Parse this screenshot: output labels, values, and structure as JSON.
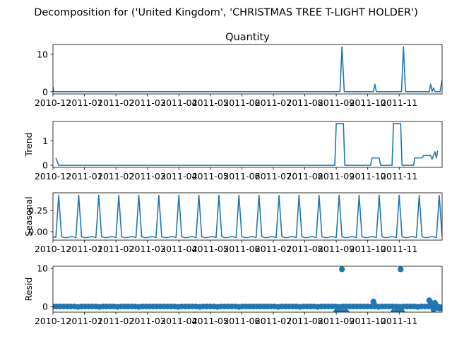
{
  "figure": {
    "title": "Decomposition for ('United Kingdom', 'CHRISTMAS TREE T-LIGHT HOLDER')"
  },
  "colors": {
    "series": "#1f77b4",
    "axes": "#000000",
    "background": "#ffffff"
  },
  "chart_data": [
    {
      "type": "line",
      "title": "Quantity",
      "ylabel": "",
      "ylim": [
        -0.6,
        12.6
      ],
      "yticks": [
        0,
        10
      ],
      "x_ticks": [
        "2010-12",
        "2011-01",
        "2011-02",
        "2011-03",
        "2011-04",
        "2011-05",
        "2011-06",
        "2011-07",
        "2011-08",
        "2011-09",
        "2011-10",
        "2011-11"
      ],
      "grid": false,
      "series": [
        {
          "points": [
            [
              0,
              1.3
            ],
            [
              0.3,
              0
            ],
            [
              100.3,
              0
            ],
            [
              101,
              12
            ],
            [
              101.8,
              0
            ],
            [
              112,
              0
            ],
            [
              112.5,
              2
            ],
            [
              113,
              0
            ],
            [
              121.8,
              0
            ],
            [
              122.5,
              12
            ],
            [
              123.2,
              0
            ],
            [
              131.5,
              0
            ],
            [
              132,
              2
            ],
            [
              132.5,
              0
            ],
            [
              133,
              1
            ],
            [
              133.5,
              0
            ],
            [
              134.5,
              0
            ],
            [
              135.3,
              0
            ],
            [
              136,
              3.2
            ]
          ]
        }
      ]
    },
    {
      "type": "line",
      "title": "",
      "ylabel": "Trend",
      "ylim": [
        -0.085,
        1.785
      ],
      "yticks": [
        0,
        1
      ],
      "x_ticks": [
        "2010-12",
        "2011-01",
        "2011-02",
        "2011-03",
        "2011-04",
        "2011-05",
        "2011-06",
        "2011-07",
        "2011-08",
        "2011-09",
        "2011-10",
        "2011-11"
      ],
      "grid": false,
      "series": [
        {
          "points": [
            [
              1,
              0.3
            ],
            [
              2,
              0
            ],
            [
              98.5,
              0
            ],
            [
              99,
              1.7
            ],
            [
              101.5,
              1.7
            ],
            [
              102,
              0
            ],
            [
              111,
              0
            ],
            [
              111.5,
              0.3
            ],
            [
              114,
              0.3
            ],
            [
              114.5,
              0
            ],
            [
              118.5,
              0
            ],
            [
              119,
              1.7
            ],
            [
              121.5,
              1.7
            ],
            [
              122,
              0
            ],
            [
              126,
              0
            ],
            [
              126.5,
              0.3
            ],
            [
              129,
              0.3
            ],
            [
              129.5,
              0.4
            ],
            [
              132,
              0.4
            ],
            [
              132.5,
              0.25
            ],
            [
              133.5,
              0.55
            ],
            [
              134,
              0.3
            ],
            [
              134.5,
              0.6
            ]
          ]
        }
      ]
    },
    {
      "type": "line",
      "title": "",
      "ylabel": "Seasonal",
      "ylim": [
        -0.1,
        0.46
      ],
      "yticks": [
        0.0,
        0.25
      ],
      "ytick_labels": [
        "0.00",
        "0.25"
      ],
      "x_ticks": [
        "2010-12",
        "2011-01",
        "2011-02",
        "2011-03",
        "2011-04",
        "2011-05",
        "2011-06",
        "2011-07",
        "2011-08",
        "2011-09",
        "2011-10",
        "2011-11"
      ],
      "grid": false,
      "series": [
        {
          "period_days": 7,
          "pattern": [
            -0.06,
            -0.07,
            0.43,
            -0.06,
            -0.07,
            -0.07,
            -0.06
          ],
          "x_range": [
            0,
            136
          ]
        }
      ]
    },
    {
      "type": "scatter",
      "title": "",
      "ylabel": "Resid",
      "ylim": [
        -1.5,
        10.6
      ],
      "yticks": [
        0,
        10
      ],
      "x_ticks": [
        "2010-12",
        "2011-01",
        "2011-02",
        "2011-03",
        "2011-04",
        "2011-05",
        "2011-06",
        "2011-07",
        "2011-08",
        "2011-09",
        "2011-10",
        "2011-11"
      ],
      "grid": false,
      "baseline": {
        "x_range": [
          0,
          136
        ],
        "value": 0,
        "spike_value": -0.1,
        "spike_every": 7
      },
      "points": [
        [
          99,
          -1.5
        ],
        [
          99.5,
          -1.5
        ],
        [
          100,
          -1.5
        ],
        [
          100.5,
          -1.5
        ],
        [
          101,
          9.8
        ],
        [
          101.5,
          -1.5
        ],
        [
          102,
          -1.5
        ],
        [
          102.5,
          -1.5
        ],
        [
          112,
          1.3
        ],
        [
          112.5,
          0.3
        ],
        [
          119,
          -1.5
        ],
        [
          119.5,
          -1.5
        ],
        [
          120,
          -1.5
        ],
        [
          120.5,
          -1.5
        ],
        [
          121,
          -1.5
        ],
        [
          121.5,
          9.8
        ],
        [
          122,
          -1.5
        ],
        [
          131.5,
          1.6
        ],
        [
          132,
          1.0
        ],
        [
          132.5,
          0.3
        ],
        [
          133,
          -0.8
        ],
        [
          133.5,
          0.9
        ],
        [
          134,
          0.2
        ],
        [
          134.5,
          -0.4
        ],
        [
          135,
          -0.5
        ],
        [
          135.5,
          -0.5
        ],
        [
          136,
          -0.3
        ]
      ]
    }
  ]
}
